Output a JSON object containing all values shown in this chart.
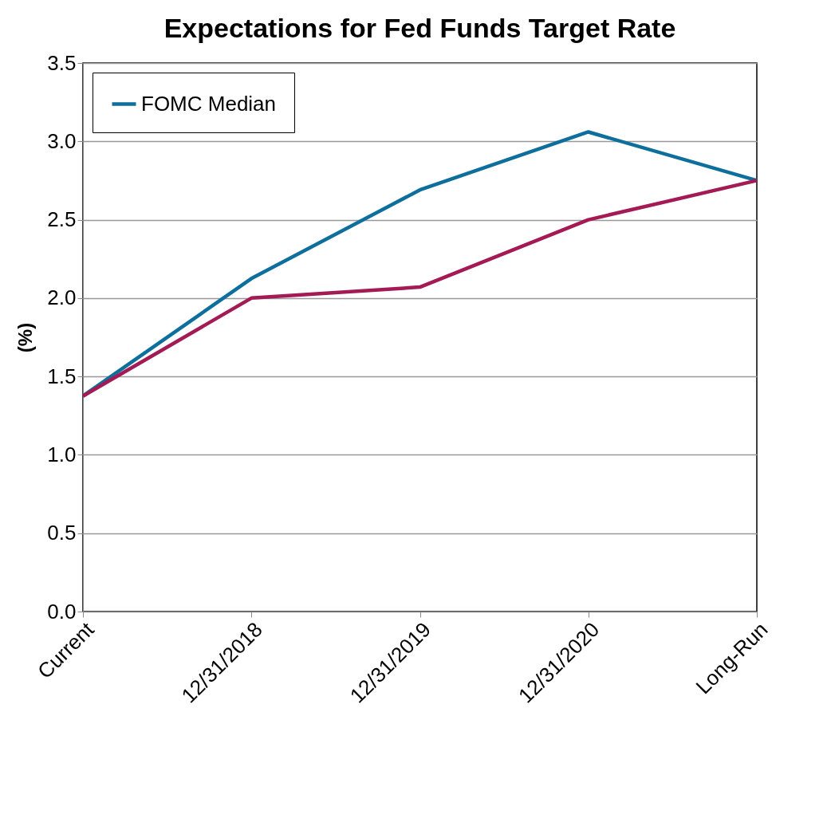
{
  "chart_data": {
    "type": "line",
    "title": "Expectations for Fed Funds Target Rate",
    "ylabel": "(%)",
    "categories": [
      "Current",
      "12/31/2018",
      "12/31/2019",
      "12/31/2020",
      "Long-Run"
    ],
    "series": [
      {
        "name": "FOMC Median",
        "color": "#0e6f9c",
        "values": [
          1.375,
          2.125,
          2.69,
          3.06,
          2.75
        ]
      },
      {
        "color": "#a31a55",
        "values": [
          1.375,
          2.0,
          2.07,
          2.5,
          2.75
        ]
      }
    ],
    "ylim": [
      0,
      3.5
    ],
    "yticks": [
      {
        "value": 0,
        "label": "0.0"
      },
      0.5,
      {
        "value": 1,
        "label": "1.0"
      },
      1.5,
      {
        "value": 2,
        "label": "2.0"
      },
      2.5,
      {
        "value": 3,
        "label": "3.0"
      },
      3.5
    ],
    "grid": "y",
    "legend": "top left",
    "marker": "none",
    "line_style": "solid"
  }
}
